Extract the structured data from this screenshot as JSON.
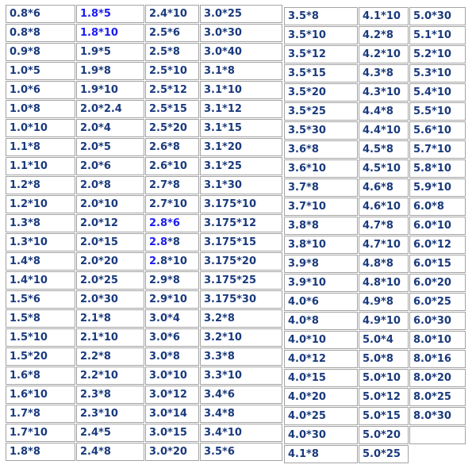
{
  "title": "size-dimension-table",
  "colors": {
    "text_navy": "#1a3a7c",
    "link_blue": "#1c1cf0",
    "border_gray": "#a3a3a3",
    "background": "#ffffff"
  },
  "table": {
    "columns_count": 7,
    "rows_count": 24,
    "rows": [
      [
        "0.8*6",
        "1.8*5",
        "2.4*10",
        "3.0*25",
        "3.5*8",
        "4.1*10",
        "5.0*30"
      ],
      [
        "0.8*8",
        "1.8*10",
        "2.5*6",
        "3.0*30",
        "3.5*10",
        "4.2*8",
        "5.1*10"
      ],
      [
        "0.9*8",
        "1.9*5",
        "2.5*8",
        "3.0*40",
        "3.5*12",
        "4.2*10",
        "5.2*10"
      ],
      [
        "1.0*5",
        "1.9*8",
        "2.5*10",
        "3.1*8",
        "3.5*15",
        "4.3*8",
        "5.3*10"
      ],
      [
        "1.0*6",
        "1.9*10",
        "2.5*12",
        "3.1*10",
        "3.5*20",
        "4.3*10",
        "5.4*10"
      ],
      [
        "1.0*8",
        "2.0*2.4",
        "2.5*15",
        "3.1*12",
        "3.5*25",
        "4.4*8",
        "5.5*10"
      ],
      [
        "1.0*10",
        "2.0*4",
        "2.5*20",
        "3.1*15",
        "3.5*30",
        "4.4*10",
        "5.6*10"
      ],
      [
        "1.1*8",
        "2.0*5",
        "2.6*8",
        "3.1*20",
        "3.6*8",
        "4.5*8",
        "5.7*10"
      ],
      [
        "1.1*10",
        "2.0*6",
        "2.6*10",
        "3.1*25",
        "3.6*10",
        "4.5*10",
        "5.8*10"
      ],
      [
        "1.2*8",
        "2.0*8",
        "2.7*8",
        "3.1*30",
        "3.7*8",
        "4.6*8",
        "5.9*10"
      ],
      [
        "1.2*10",
        "2.0*10",
        "2.7*10",
        "3.175*10",
        "3.7*10",
        "4.6*10",
        "6.0*8"
      ],
      [
        "1.3*8",
        "2.0*12",
        "2.8*6",
        "3.175*12",
        "3.8*8",
        "4.7*8",
        "6.0*10"
      ],
      [
        "1.3*10",
        "2.0*15",
        "2.8*8",
        "3.175*15",
        "3.8*10",
        "4.7*10",
        "6.0*12"
      ],
      [
        "1.4*8",
        "2.0*20",
        "2.8*10",
        "3.175*20",
        "3.9*8",
        "4.8*8",
        "6.0*15"
      ],
      [
        "1.4*10",
        "2.0*25",
        "2.9*8",
        "3.175*25",
        "3.9*10",
        "4.8*10",
        "6.0*20"
      ],
      [
        "1.5*6",
        "2.0*30",
        "2.9*10",
        "3.175*30",
        "4.0*6",
        "4.9*8",
        "6.0*25"
      ],
      [
        "1.5*8",
        "2.1*8",
        "3.0*4",
        "3.2*8",
        "4.0*8",
        "4.9*10",
        "6.0*30"
      ],
      [
        "1.5*10",
        "2.1*10",
        "3.0*6",
        "3.2*10",
        "4.0*10",
        "5.0*4",
        "8.0*10"
      ],
      [
        "1.5*20",
        "2.2*8",
        "3.0*8",
        "3.3*8",
        "4.0*12",
        "5.0*8",
        "8.0*16"
      ],
      [
        "1.6*8",
        "2.2*10",
        "3.0*10",
        "3.3*10",
        "4.0*15",
        "5.0*10",
        "8.0*20"
      ],
      [
        "1.6*10",
        "2.3*8",
        "3.0*12",
        "3.4*6",
        "4.0*20",
        "5.0*12",
        "8.0*25"
      ],
      [
        "1.7*8",
        "2.3*10",
        "3.0*14",
        "3.4*8",
        "4.0*25",
        "5.0*15",
        "8.0*30"
      ],
      [
        "1.7*10",
        "2.4*5",
        "3.0*15",
        "3.4*10",
        "4.0*30",
        "5.0*20",
        ""
      ],
      [
        "1.8*8",
        "2.4*8",
        "3.0*20",
        "3.5*6",
        "4.1*8",
        "5.0*25",
        null
      ]
    ],
    "highlighted_cells": [
      {
        "row": 0,
        "col": 1,
        "prefix": 0
      },
      {
        "row": 1,
        "col": 1,
        "prefix": 0
      },
      {
        "row": 11,
        "col": 2,
        "prefix": 0
      },
      {
        "row": 12,
        "col": 2,
        "prefix": 3
      },
      {
        "row": 13,
        "col": 2,
        "prefix": 1
      }
    ],
    "left_block_columns": [
      0,
      1,
      2,
      3
    ],
    "right_block_columns": [
      4,
      5,
      6
    ],
    "left_col_widths": [
      88,
      86,
      68,
      104
    ],
    "right_col_widths": [
      93,
      63,
      71
    ]
  }
}
